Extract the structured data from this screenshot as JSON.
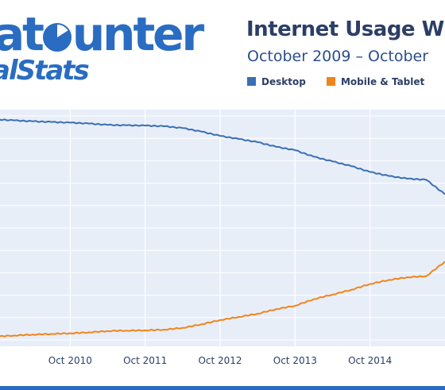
{
  "branding": {
    "logo_top_a": "at",
    "logo_top_b": "unter",
    "logo_bottom": "alStats"
  },
  "chart_data": {
    "type": "line",
    "title": "Internet Usage W",
    "subtitle": "October 2009 – October",
    "xlabel": "",
    "ylabel": "",
    "x": [
      "2009-10",
      "2010-01",
      "2010-04",
      "2010-07",
      "2010-10",
      "2011-01",
      "2011-04",
      "2011-07",
      "2011-10",
      "2012-01",
      "2012-04",
      "2012-07",
      "2012-10",
      "2013-01",
      "2013-04",
      "2013-07",
      "2013-10",
      "2014-01",
      "2014-04",
      "2014-07",
      "2014-10",
      "2015-01",
      "2015-04",
      "2015-07",
      "2015-10"
    ],
    "x_tick_labels": [
      "Oct 2010",
      "Oct 2011",
      "Oct 2012",
      "Oct 2013",
      "Oct 2014"
    ],
    "ylim": [
      0,
      100
    ],
    "grid": true,
    "legend_position": "top",
    "series": [
      {
        "name": "Desktop",
        "color": "#3a6eb5",
        "values": [
          98.5,
          98.0,
          97.6,
          97.3,
          97.0,
          96.6,
          96.0,
          95.8,
          95.7,
          95.4,
          94.6,
          93.0,
          91.1,
          89.7,
          88.3,
          86.2,
          84.7,
          81.8,
          79.7,
          77.6,
          75.0,
          73.2,
          72.0,
          71.5,
          65.0
        ]
      },
      {
        "name": "Mobile & Tablet",
        "color": "#f0851c",
        "values": [
          1.5,
          2.0,
          2.4,
          2.7,
          3.0,
          3.4,
          4.0,
          4.2,
          4.3,
          4.6,
          5.4,
          7.0,
          8.9,
          10.3,
          11.7,
          13.8,
          15.3,
          18.2,
          20.3,
          22.4,
          25.0,
          26.8,
          28.0,
          28.5,
          35.0
        ]
      }
    ]
  },
  "colors": {
    "plot_background": "#e8eef8",
    "grid": "#ffffff",
    "accent": "#2a6cc1"
  }
}
